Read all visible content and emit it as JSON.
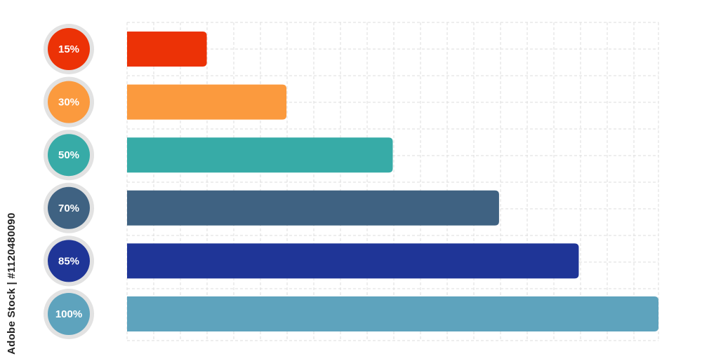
{
  "chart_data": {
    "type": "bar",
    "orientation": "horizontal",
    "values": [
      15,
      30,
      50,
      70,
      85,
      100
    ],
    "labels": [
      "15%",
      "30%",
      "50%",
      "70%",
      "85%",
      "100%"
    ],
    "colors": [
      "#ec3206",
      "#fb9a3e",
      "#37aba7",
      "#3f6282",
      "#1f3597",
      "#5ea3bd"
    ],
    "xlim": [
      0,
      100
    ],
    "grid": true,
    "grid_style": "dashed",
    "label_badge_color": "#e2e2e2"
  },
  "watermark": {
    "text": "Adobe Stock | #1120480090"
  }
}
